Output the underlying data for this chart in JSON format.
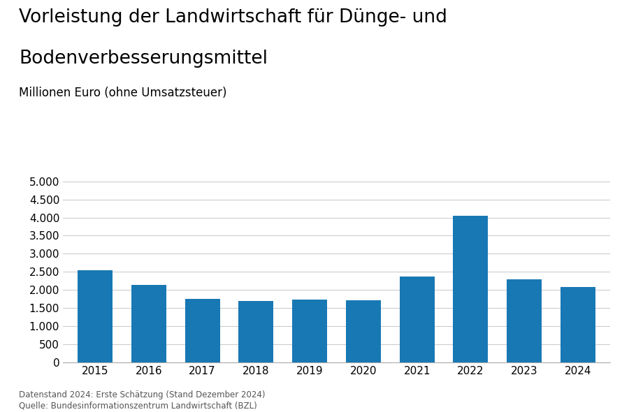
{
  "title_line1": "Vorleistung der Landwirtschaft für Dünge- und",
  "title_line2": "Bodenverbesserungsmittel",
  "subtitle": "Millionen Euro (ohne Umsatzsteuer)",
  "years": [
    2015,
    2016,
    2017,
    2018,
    2019,
    2020,
    2021,
    2022,
    2023,
    2024
  ],
  "values": [
    2540,
    2140,
    1760,
    1690,
    1730,
    1720,
    2380,
    4050,
    2290,
    2090
  ],
  "bar_color": "#1878b4",
  "ylim": [
    0,
    5000
  ],
  "yticks": [
    0,
    500,
    1000,
    1500,
    2000,
    2500,
    3000,
    3500,
    4000,
    4500,
    5000
  ],
  "footnote_line1": "Datenstand 2024: Erste Schätzung (Stand Dezember 2024)",
  "footnote_line2": "Quelle: Bundesinformationszentrum Landwirtschaft (BZL)",
  "background_color": "#ffffff",
  "grid_color": "#cccccc",
  "title_fontsize": 19,
  "subtitle_fontsize": 12,
  "tick_fontsize": 11,
  "footnote_fontsize": 8.5
}
